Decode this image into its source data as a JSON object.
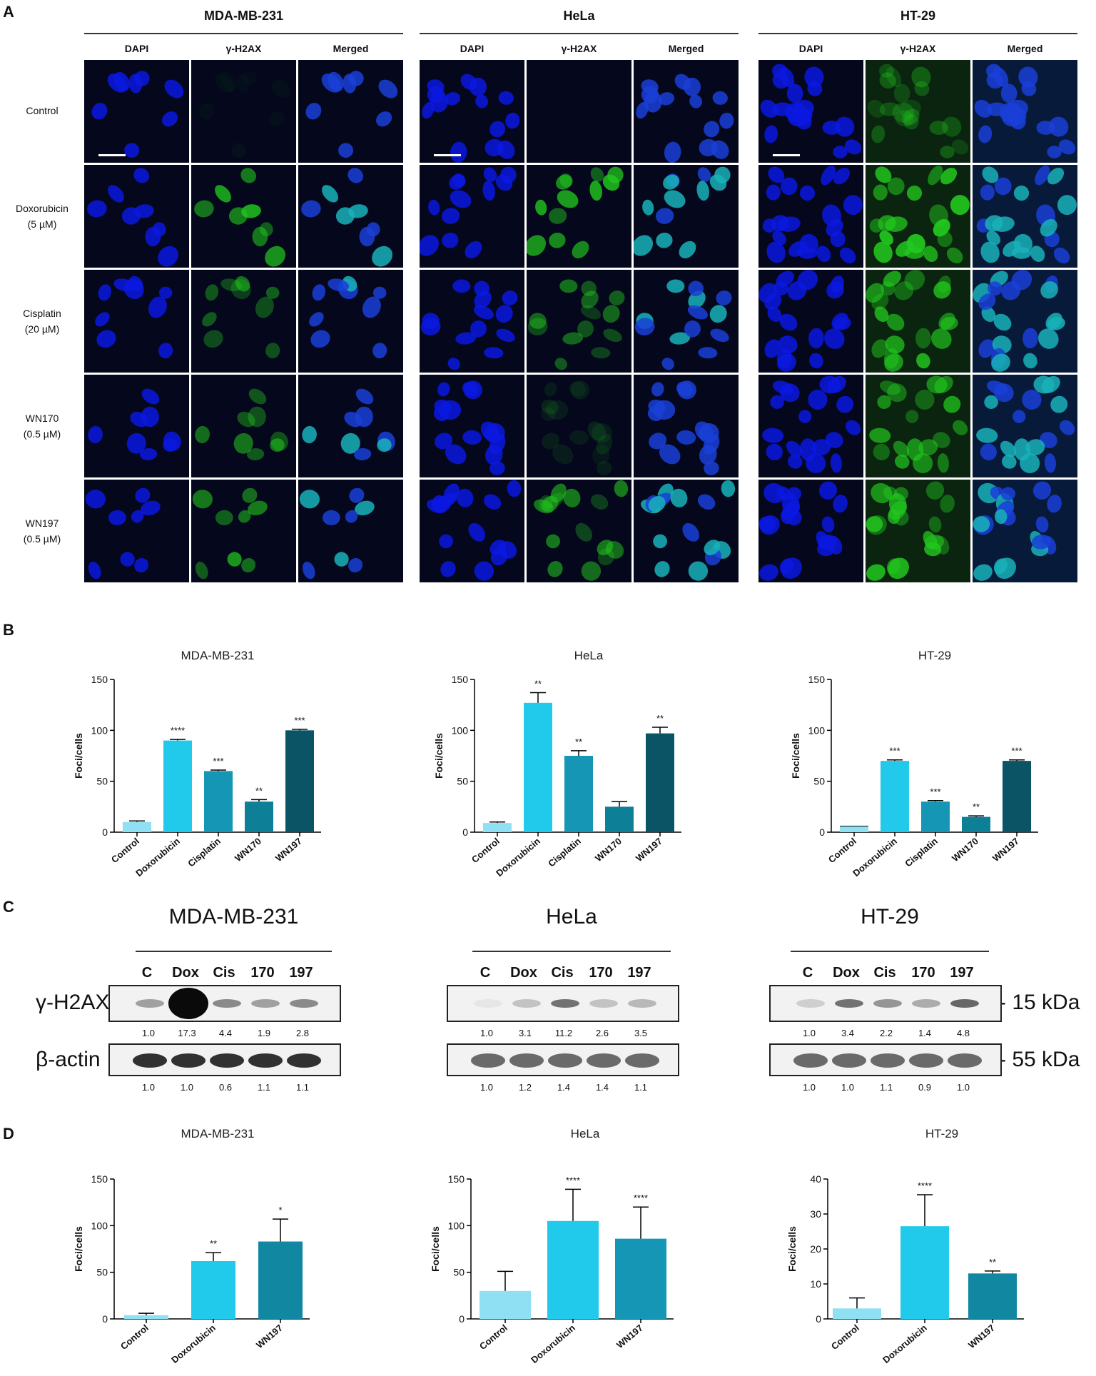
{
  "panels": {
    "a": "A",
    "b": "B",
    "c": "C",
    "d": "D"
  },
  "panel_a": {
    "cell_lines": [
      "MDA-MB-231",
      "HeLa",
      "HT-29"
    ],
    "columns": [
      "DAPI",
      "γ-H2AX",
      "Merged"
    ],
    "rows": [
      {
        "line1": "Control",
        "line2": ""
      },
      {
        "line1": "Doxorubicin",
        "line2": "(5 µM)"
      },
      {
        "line1": "Cisplatin",
        "line2": "(20 µM)"
      },
      {
        "line1": "WN170",
        "line2": "(0.5 µM)"
      },
      {
        "line1": "WN197",
        "line2": "(0.5 µM)"
      }
    ],
    "colors": {
      "dapi": "#0a18e0",
      "h2ax": "#22c81e",
      "merged": "#19b2b8",
      "background": "#05071c"
    }
  },
  "panel_c": {
    "lanes": [
      "C",
      "Dox",
      "Cis",
      "170",
      "197"
    ],
    "proteins": [
      "γ-H2AX",
      "β-actin"
    ],
    "markers": [
      "- 15 kDa",
      "- 55 kDa"
    ],
    "blots": [
      {
        "name": "MDA-MB-231",
        "h2ax": [
          "1.0",
          "17.3",
          "4.4",
          "1.9",
          "2.8"
        ],
        "actin": [
          "1.0",
          "1.0",
          "0.6",
          "1.1",
          "1.1"
        ]
      },
      {
        "name": "HeLa",
        "h2ax": [
          "1.0",
          "3.1",
          "11.2",
          "2.6",
          "3.5"
        ],
        "actin": [
          "1.0",
          "1.2",
          "1.4",
          "1.4",
          "1.1"
        ]
      },
      {
        "name": "HT-29",
        "h2ax": [
          "1.0",
          "3.4",
          "2.2",
          "1.4",
          "4.8"
        ],
        "actin": [
          "1.0",
          "1.0",
          "1.1",
          "0.9",
          "1.0"
        ]
      }
    ]
  },
  "chart_data": [
    {
      "type": "bar",
      "panel": "B",
      "title": "MDA-MB-231",
      "ylabel": "Foci/cells",
      "ylim": [
        0,
        150
      ],
      "yticks": [
        0,
        50,
        100,
        150
      ],
      "categories": [
        "Control",
        "Doxorubicin",
        "Cisplatin",
        "WN170",
        "WN197"
      ],
      "values": [
        10,
        90,
        60,
        30,
        100
      ],
      "errors": [
        1,
        1,
        1,
        2,
        1
      ],
      "annotations": [
        "",
        "****",
        "***",
        "**",
        "***"
      ],
      "colors": [
        "#8fe0f2",
        "#21c9ea",
        "#1496b4",
        "#0d7f96",
        "#0a5466"
      ]
    },
    {
      "type": "bar",
      "panel": "B",
      "title": "HeLa",
      "ylabel": "Foci/cells",
      "ylim": [
        0,
        150
      ],
      "yticks": [
        0,
        50,
        100,
        150
      ],
      "categories": [
        "Control",
        "Doxorubicin",
        "Cisplatin",
        "WN170",
        "WN197"
      ],
      "values": [
        9,
        127,
        75,
        25,
        97
      ],
      "errors": [
        1,
        10,
        5,
        5,
        6
      ],
      "annotations": [
        "",
        "**",
        "**",
        "",
        "**"
      ],
      "colors": [
        "#8fe0f2",
        "#21c9ea",
        "#1496b4",
        "#0d7f96",
        "#0a5466"
      ]
    },
    {
      "type": "bar",
      "panel": "B",
      "title": "HT-29",
      "ylabel": "Foci/cells",
      "ylim": [
        0,
        150
      ],
      "yticks": [
        0,
        50,
        100,
        150
      ],
      "categories": [
        "Control",
        "Doxorubicin",
        "Cisplatin",
        "WN170",
        "WN197"
      ],
      "values": [
        6,
        70,
        30,
        15,
        70
      ],
      "errors": [
        0,
        1,
        1,
        1,
        1
      ],
      "annotations": [
        "",
        "***",
        "***",
        "**",
        "***"
      ],
      "colors": [
        "#8fe0f2",
        "#21c9ea",
        "#1496b4",
        "#0d7f96",
        "#0a5466"
      ]
    },
    {
      "type": "bar",
      "panel": "D",
      "title": "MDA-MB-231",
      "ylabel": "Foci/cells",
      "ylim": [
        0,
        150
      ],
      "yticks": [
        0,
        50,
        100,
        150
      ],
      "categories": [
        "Control",
        "Doxorubicin",
        "WN197"
      ],
      "values": [
        4,
        62,
        83
      ],
      "errors": [
        2,
        9,
        24
      ],
      "annotations": [
        "",
        "**",
        "*"
      ],
      "colors": [
        "#8fe0f2",
        "#21c9ea",
        "#1287a2"
      ]
    },
    {
      "type": "bar",
      "panel": "D",
      "title": "HeLa",
      "ylabel": "Foci/cells",
      "ylim": [
        0,
        150
      ],
      "yticks": [
        0,
        50,
        100,
        150
      ],
      "categories": [
        "Control",
        "Doxorubicin",
        "WN197"
      ],
      "values": [
        30,
        105,
        86
      ],
      "errors": [
        21,
        34,
        34
      ],
      "annotations": [
        "",
        "****",
        "****"
      ],
      "colors": [
        "#8fe0f2",
        "#21c9ea",
        "#1496b4"
      ]
    },
    {
      "type": "bar",
      "panel": "D",
      "title": "HT-29",
      "ylabel": "Foci/cells",
      "ylim": [
        0,
        40
      ],
      "yticks": [
        0,
        10,
        20,
        30,
        40
      ],
      "categories": [
        "Control",
        "Doxorubicin",
        "WN197"
      ],
      "values": [
        3,
        26.5,
        13
      ],
      "errors": [
        3,
        9,
        0.7
      ],
      "annotations": [
        "",
        "****",
        "**"
      ],
      "colors": [
        "#8fe0f2",
        "#21c9ea",
        "#1287a2"
      ]
    }
  ]
}
